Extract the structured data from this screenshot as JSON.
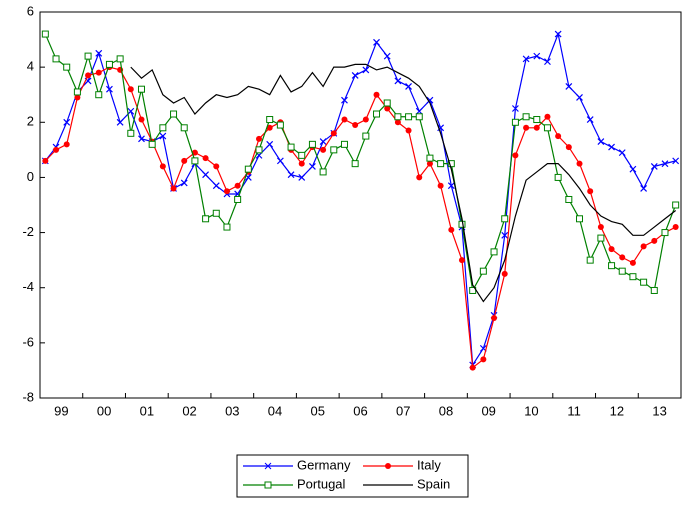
{
  "chart_data": {
    "type": "line",
    "categories": [
      "99",
      null,
      null,
      null,
      "00",
      null,
      null,
      null,
      "01",
      null,
      null,
      null,
      "02",
      null,
      null,
      null,
      "03",
      null,
      null,
      null,
      "04",
      null,
      null,
      null,
      "05",
      null,
      null,
      null,
      "06",
      null,
      null,
      null,
      "07",
      null,
      null,
      null,
      "08",
      null,
      null,
      null,
      "09",
      null,
      null,
      null,
      "10",
      null,
      null,
      null,
      "11",
      null,
      null,
      null,
      "12",
      null,
      null,
      null,
      "13",
      null,
      null,
      null
    ],
    "ylim": [
      -8,
      6
    ],
    "yticks": [
      -8,
      -6,
      -4,
      -2,
      0,
      2,
      4,
      6
    ],
    "series": [
      {
        "name": "Germany",
        "color": "#0000ff",
        "marker": "x",
        "values": [
          0.6,
          1.1,
          2.0,
          3.1,
          3.5,
          4.5,
          3.2,
          2.0,
          2.4,
          1.4,
          1.3,
          1.5,
          -0.4,
          -0.2,
          0.5,
          0.1,
          -0.3,
          -0.6,
          -0.6,
          0.0,
          0.8,
          1.2,
          0.6,
          0.1,
          0.0,
          0.4,
          1.3,
          1.6,
          2.8,
          3.7,
          3.9,
          4.9,
          4.4,
          3.5,
          3.3,
          2.4,
          2.8,
          1.8,
          -0.3,
          -1.8,
          -6.8,
          -6.2,
          -5.0,
          -2.1,
          2.5,
          4.3,
          4.4,
          4.2,
          5.2,
          3.3,
          2.9,
          2.1,
          1.3,
          1.1,
          0.9,
          0.3,
          -0.4,
          0.4,
          0.5,
          0.6
        ]
      },
      {
        "name": "Italy",
        "color": "#ff0000",
        "marker": "circle",
        "values": [
          0.6,
          1.0,
          1.2,
          2.9,
          3.7,
          3.8,
          4.0,
          3.9,
          3.2,
          2.1,
          1.3,
          0.4,
          -0.4,
          0.6,
          0.9,
          0.7,
          0.4,
          -0.5,
          -0.3,
          0.2,
          1.4,
          1.8,
          2.0,
          1.0,
          0.5,
          1.1,
          1.0,
          1.6,
          2.1,
          1.9,
          2.1,
          3.0,
          2.5,
          2.0,
          1.7,
          0.0,
          0.5,
          -0.3,
          -1.9,
          -3.0,
          -6.9,
          -6.6,
          -5.1,
          -3.5,
          0.8,
          1.8,
          1.8,
          2.2,
          1.5,
          1.1,
          0.5,
          -0.5,
          -1.8,
          -2.6,
          -2.9,
          -3.1,
          -2.5,
          -2.3,
          -2.0,
          -1.8
        ]
      },
      {
        "name": "Portugal",
        "color": "#008000",
        "marker": "square",
        "values": [
          5.2,
          4.3,
          4.0,
          3.1,
          4.4,
          3.0,
          4.1,
          4.3,
          1.6,
          3.2,
          1.2,
          1.8,
          2.3,
          1.8,
          0.6,
          -1.5,
          -1.3,
          -1.8,
          -0.8,
          0.3,
          1.0,
          2.1,
          1.9,
          1.1,
          0.8,
          1.2,
          0.2,
          1.0,
          1.2,
          0.5,
          1.5,
          2.3,
          2.7,
          2.2,
          2.2,
          2.2,
          0.7,
          0.5,
          0.5,
          -1.7,
          -4.1,
          -3.4,
          -2.7,
          -1.5,
          2.0,
          2.2,
          2.1,
          1.8,
          0.0,
          -0.8,
          -1.5,
          -3.0,
          -2.2,
          -3.2,
          -3.4,
          -3.6,
          -3.8,
          -4.1,
          -2.0,
          -1.0
        ]
      },
      {
        "name": "Spain",
        "color": "#000000",
        "marker": "none",
        "values": [
          null,
          null,
          null,
          null,
          null,
          null,
          null,
          null,
          4.0,
          3.6,
          3.9,
          3.0,
          2.7,
          2.9,
          2.3,
          2.7,
          3.0,
          2.9,
          3.0,
          3.3,
          3.2,
          3.0,
          3.7,
          3.1,
          3.3,
          3.8,
          3.3,
          4.0,
          4.0,
          4.1,
          4.1,
          3.9,
          4.0,
          3.8,
          3.6,
          3.3,
          2.7,
          1.6,
          0.3,
          -1.5,
          -3.9,
          -4.5,
          -4.0,
          -3.0,
          -1.4,
          -0.1,
          0.2,
          0.5,
          0.5,
          0.1,
          -0.4,
          -1.0,
          -1.4,
          -1.6,
          -1.7,
          -2.1,
          -2.1,
          -1.8,
          -1.5,
          -1.2
        ]
      }
    ]
  }
}
